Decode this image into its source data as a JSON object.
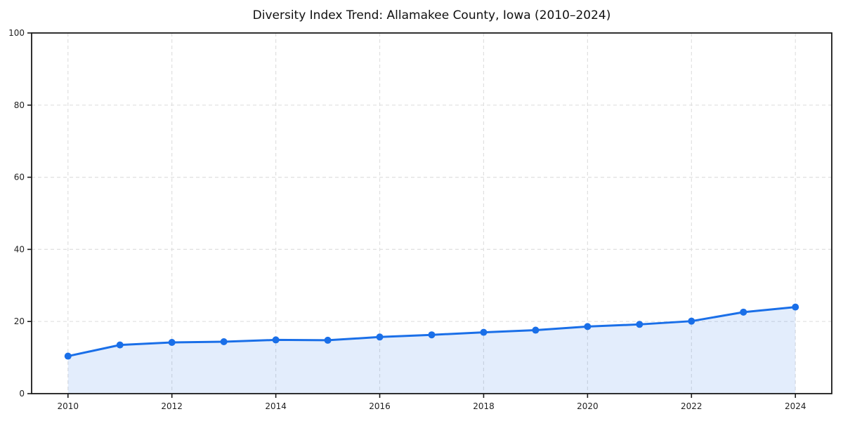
{
  "chart_data": {
    "type": "area",
    "title": "Diversity Index Trend: Allamakee County, Iowa (2010–2024)",
    "x": [
      2010,
      2011,
      2012,
      2013,
      2014,
      2015,
      2016,
      2017,
      2018,
      2019,
      2020,
      2021,
      2022,
      2023,
      2024
    ],
    "values": [
      10.4,
      13.5,
      14.2,
      14.4,
      14.9,
      14.8,
      15.7,
      16.3,
      17.0,
      17.6,
      18.6,
      19.2,
      20.1,
      22.6,
      24.0
    ],
    "xlabel": "",
    "ylabel": "",
    "xlim": [
      2009.3,
      2024.7
    ],
    "ylim": [
      0,
      100
    ],
    "x_ticks": [
      2010,
      2012,
      2014,
      2016,
      2018,
      2020,
      2022,
      2024
    ],
    "y_ticks": [
      0,
      20,
      40,
      60,
      80,
      100
    ],
    "grid": true,
    "grid_style": "dashed",
    "legend": false,
    "marker": "circle",
    "colors": {
      "line": "#1a6fe8",
      "marker": "#1a6fe8",
      "fill": "rgba(26, 111, 232, 0.12)",
      "grid": "#e0e0e0",
      "spine": "#1a1a1a",
      "tick_label": "#1f1f1f",
      "title": "#111111",
      "background": "#ffffff"
    }
  }
}
